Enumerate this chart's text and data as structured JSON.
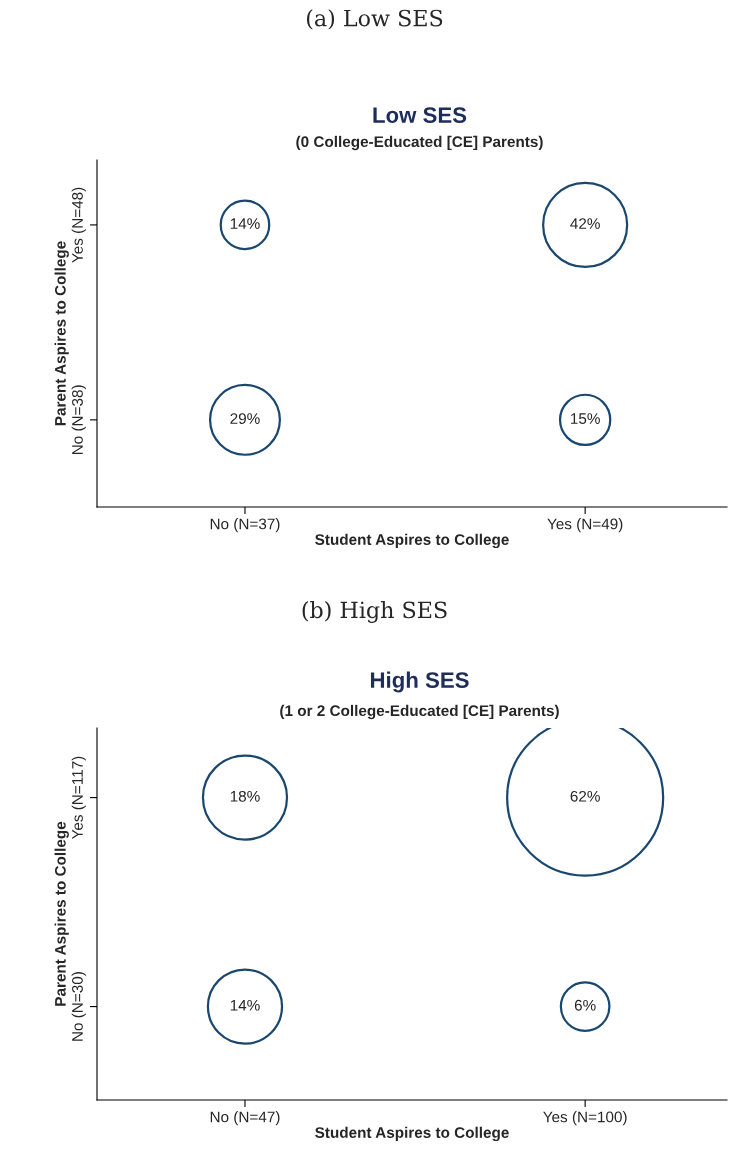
{
  "chart_data": [
    {
      "type": "heatmap",
      "title": "Low SES",
      "subtitle": "(0 College-Educated [CE] Parents)",
      "xlabel": "Student Aspires to College",
      "ylabel": "Parent Aspires to College",
      "annotations": [
        "(a) Low SES"
      ],
      "categories": [
        "No (N=37)",
        "Yes (N=49)"
      ],
      "y_categories": [
        "Yes (N=48)",
        "No (N=38)"
      ],
      "cells": [
        [
          14,
          42
        ],
        [
          29,
          15
        ]
      ],
      "cell_labels": [
        [
          "14%",
          "42%"
        ],
        [
          "29%",
          "15%"
        ]
      ],
      "color": "#1a476f"
    },
    {
      "type": "heatmap",
      "title": "High SES",
      "subtitle": "(1 or 2 College-Educated [CE] Parents)",
      "xlabel": "Student Aspires to College",
      "ylabel": "Parent Aspires to College",
      "annotations": [
        "(b) High SES"
      ],
      "categories": [
        "No (N=47)",
        "Yes (N=100)"
      ],
      "y_categories": [
        "Yes (N=117)",
        "No (N=30)"
      ],
      "cells": [
        [
          18,
          62
        ],
        [
          14,
          6
        ]
      ],
      "cell_labels": [
        [
          "18%",
          "62%"
        ],
        [
          "14%",
          "6%"
        ]
      ],
      "color": "#1a476f"
    }
  ]
}
